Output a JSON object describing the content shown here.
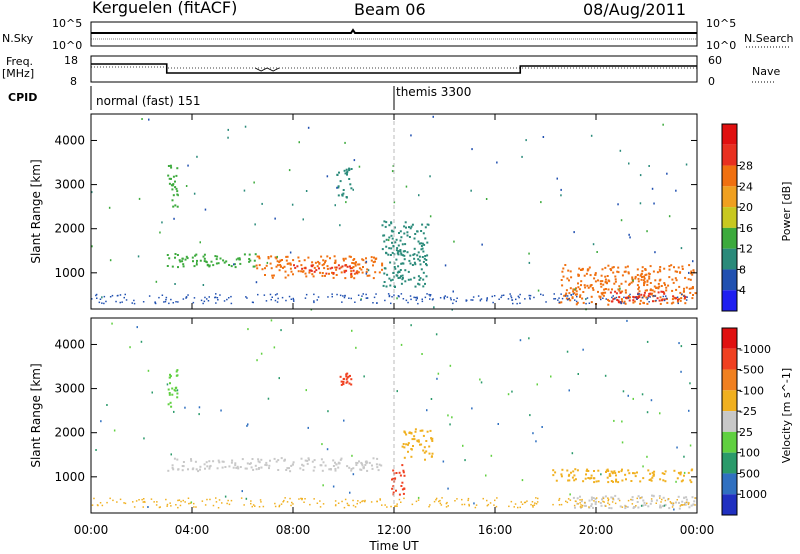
{
  "header": {
    "station": "Kerguelen (fitACF)",
    "beam": "Beam 06",
    "date": "08/Aug/2011"
  },
  "panels": {
    "nsky": {
      "left_label": "N.Sky",
      "left_ticks": [
        "10^5",
        "10^0"
      ],
      "right_ticks": [
        "10^5",
        "10^0"
      ],
      "right_label": "N.Search"
    },
    "freq": {
      "left_label_1": "Freq.",
      "left_label_2": "[MHz]",
      "left_ticks": [
        "18",
        "8"
      ],
      "right_ticks": [
        "60",
        "0"
      ],
      "right_label": "Nave"
    },
    "cpid": {
      "label": "CPID",
      "mode_1": "normal (fast) 151",
      "mode_2": "themis 3300"
    }
  },
  "chart_data": [
    {
      "type": "heatmap",
      "title": "",
      "xlabel": "Time UT",
      "ylabel": "Slant Range [km]",
      "xlim": [
        "00:00",
        "24:00"
      ],
      "ylim": [
        180,
        4600
      ],
      "x_ticks": [
        "00:00",
        "04:00",
        "08:00",
        "12:00",
        "16:00",
        "20:00",
        "00:00"
      ],
      "y_ticks": [
        1000,
        2000,
        3000,
        4000
      ],
      "colorbar": {
        "label": "Power [dB]",
        "ticks": [
          4,
          8,
          12,
          16,
          20,
          24,
          28
        ],
        "colors": [
          "#1f1ff0",
          "#2050b0",
          "#2a8a7a",
          "#3caa3c",
          "#c8c820",
          "#f0a020",
          "#f07010",
          "#e83020",
          "#e01010"
        ]
      },
      "regions": [
        {
          "t_start": 3.0,
          "t_end": 6.5,
          "r_start": 1150,
          "r_end": 1450,
          "level": "12"
        },
        {
          "t_start": 6.5,
          "t_end": 11.5,
          "r_start": 900,
          "r_end": 1400,
          "level": "24"
        },
        {
          "t_start": 8.0,
          "t_end": 10.5,
          "r_start": 1000,
          "r_end": 1200,
          "level": "28"
        },
        {
          "t_start": 3.0,
          "t_end": 3.4,
          "r_start": 2500,
          "r_end": 3500,
          "level": "12"
        },
        {
          "t_start": 9.7,
          "t_end": 10.3,
          "r_start": 2700,
          "r_end": 3400,
          "level": "8"
        },
        {
          "t_start": 11.5,
          "t_end": 13.3,
          "r_start": 700,
          "r_end": 2200,
          "level": "8"
        },
        {
          "t_start": 18.5,
          "t_end": 23.9,
          "r_start": 300,
          "r_end": 1200,
          "level": "24"
        },
        {
          "t_start": 20.5,
          "t_end": 23.5,
          "r_start": 350,
          "r_end": 600,
          "level": "28"
        }
      ]
    },
    {
      "type": "heatmap",
      "title": "",
      "xlabel": "Time UT",
      "ylabel": "Slant Range [km]",
      "xlim": [
        "00:00",
        "24:00"
      ],
      "ylim": [
        180,
        4600
      ],
      "x_ticks": [
        "00:00",
        "04:00",
        "08:00",
        "12:00",
        "16:00",
        "20:00",
        "00:00"
      ],
      "y_ticks": [
        1000,
        2000,
        3000,
        4000
      ],
      "colorbar": {
        "label": "Velocity [m s^-1]",
        "ticks": [
          1000,
          500,
          100,
          25,
          -25,
          -100,
          -500,
          -1000
        ],
        "colors": [
          "#2030c0",
          "#3070c0",
          "#2a9a6a",
          "#60d040",
          "#c8c8c8",
          "#f0b020",
          "#f08020",
          "#f04020",
          "#e01010"
        ]
      },
      "regions": [
        {
          "t_start": 3.0,
          "t_end": 11.5,
          "r_start": 1150,
          "r_end": 1450,
          "level": "25"
        },
        {
          "t_start": 3.0,
          "t_end": 3.4,
          "r_start": 2600,
          "r_end": 3500,
          "level": "100"
        },
        {
          "t_start": 9.8,
          "t_end": 10.3,
          "r_start": 3100,
          "r_end": 3400,
          "level": "-500"
        },
        {
          "t_start": 11.8,
          "t_end": 12.4,
          "r_start": 600,
          "r_end": 1300,
          "level": "-500"
        },
        {
          "t_start": 12.3,
          "t_end": 13.5,
          "r_start": 1400,
          "r_end": 2100,
          "level": "-25"
        },
        {
          "t_start": 18.2,
          "t_end": 23.8,
          "r_start": 900,
          "r_end": 1200,
          "level": "-25"
        },
        {
          "t_start": 19.0,
          "t_end": 23.9,
          "r_start": 300,
          "r_end": 600,
          "level": "25"
        }
      ]
    }
  ]
}
